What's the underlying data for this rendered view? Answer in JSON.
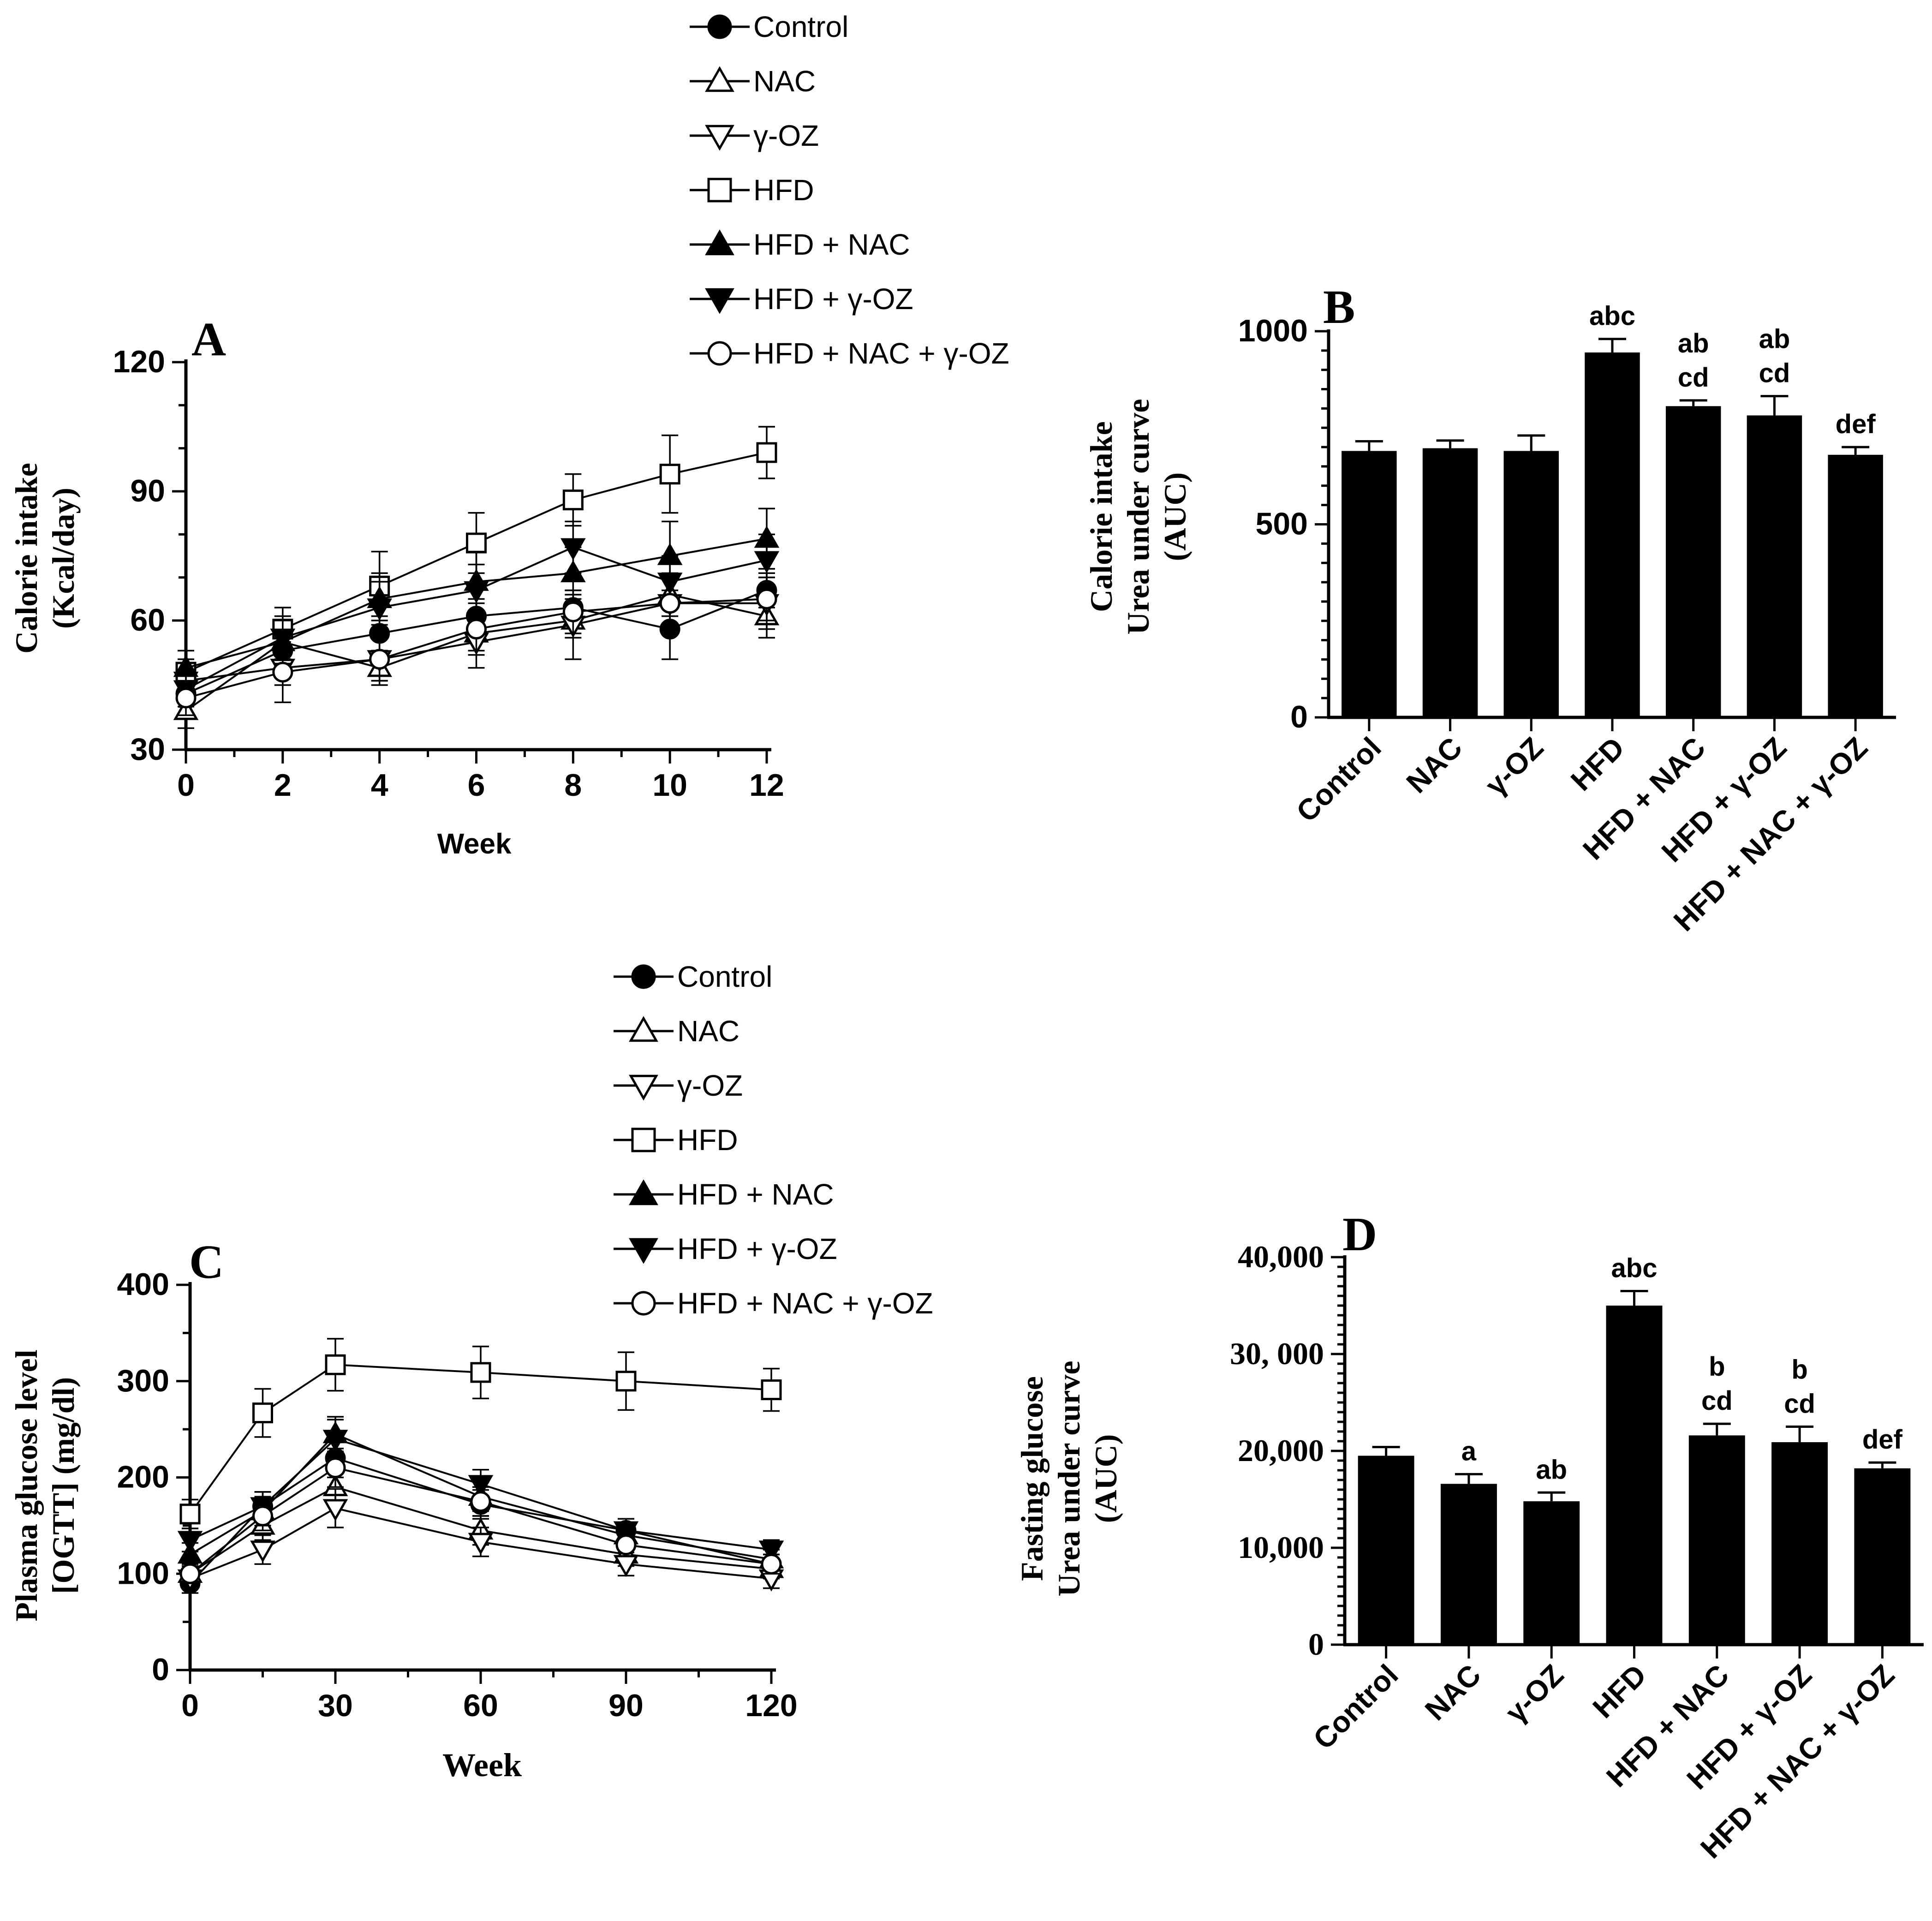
{
  "figure": {
    "background": "#ffffff",
    "ink": "#000000"
  },
  "legend": {
    "items": [
      {
        "label": "Control",
        "marker": "filled-circle-icon"
      },
      {
        "label": "NAC",
        "marker": "open-triangle-up-icon"
      },
      {
        "label": "γ-OZ",
        "marker": "open-triangle-down-icon"
      },
      {
        "label": "HFD",
        "marker": "open-square-icon"
      },
      {
        "label": "HFD + NAC",
        "marker": "filled-triangle-up-icon"
      },
      {
        "label": "HFD + γ-OZ",
        "marker": "filled-triangle-down-icon"
      },
      {
        "label": "HFD + NAC + γ-OZ",
        "marker": "open-circle-icon"
      }
    ]
  },
  "chart_data": [
    {
      "panel": "A",
      "type": "line",
      "xlabel": "Week",
      "ylabel_lines": [
        "Calorie intake",
        "(Kcal/day)"
      ],
      "xlim": [
        0,
        12
      ],
      "ylim": [
        30,
        120
      ],
      "xticks": [
        0,
        2,
        4,
        6,
        8,
        10,
        12
      ],
      "yticks": [
        30,
        60,
        90,
        120
      ],
      "x": [
        0,
        2,
        4,
        6,
        8,
        10,
        12
      ],
      "series": [
        {
          "name": "Control",
          "values": [
            43,
            53,
            57,
            61,
            63,
            58,
            67
          ],
          "err": [
            3,
            3,
            4,
            4,
            3,
            7,
            4
          ]
        },
        {
          "name": "NAC",
          "values": [
            39,
            55,
            49,
            57,
            60,
            66,
            61
          ],
          "err": [
            4,
            4,
            4,
            4,
            4,
            5,
            5
          ]
        },
        {
          "name": "γ-OZ",
          "values": [
            46,
            49,
            51,
            55,
            59,
            64,
            64
          ],
          "err": [
            4,
            4,
            5,
            6,
            8,
            6,
            6
          ]
        },
        {
          "name": "HFD",
          "values": [
            48,
            58,
            68,
            78,
            88,
            94,
            99
          ],
          "err": [
            3,
            5,
            8,
            7,
            6,
            9,
            6
          ]
        },
        {
          "name": "HFD + NAC",
          "values": [
            49,
            55,
            65,
            69,
            71,
            75,
            79
          ],
          "err": [
            4,
            5,
            6,
            7,
            6,
            8,
            7
          ]
        },
        {
          "name": "HFD + γ-OZ",
          "values": [
            44,
            56,
            63,
            67,
            77,
            69,
            74
          ],
          "err": [
            4,
            5,
            6,
            6,
            6,
            6,
            6
          ]
        },
        {
          "name": "HFD + NAC + γ-OZ",
          "values": [
            42,
            48,
            51,
            58,
            62,
            64,
            65
          ],
          "err": [
            4,
            7,
            5,
            6,
            5,
            6,
            5
          ]
        }
      ]
    },
    {
      "panel": "B",
      "type": "bar",
      "ylabel_lines": [
        "Calorie intake",
        "Urea under curve",
        "(AUC)"
      ],
      "ylim": [
        0,
        1000
      ],
      "yticks": [
        0,
        500,
        1000
      ],
      "ytick_labels": [
        "0",
        "500",
        "1000"
      ],
      "categories": [
        "Control",
        "NAC",
        "γ-OZ",
        "HFD",
        "HFD + NAC",
        "HFD + γ-OZ",
        "HFD + NAC + γ-OZ"
      ],
      "values": [
        690,
        697,
        690,
        945,
        806,
        782,
        680
      ],
      "err": [
        25,
        20,
        40,
        35,
        15,
        50,
        20
      ],
      "sig_labels": [
        [],
        [],
        [],
        [
          "abc"
        ],
        [
          "ab",
          "cd"
        ],
        [
          "ab",
          "cd"
        ],
        [
          "def"
        ]
      ]
    },
    {
      "panel": "C",
      "type": "line",
      "xlabel": "Week",
      "ylabel_lines": [
        "Plasma glucose level",
        "[OGTT] (mg/dl)"
      ],
      "xlim": [
        0,
        120
      ],
      "ylim": [
        0,
        400
      ],
      "xticks": [
        0,
        30,
        60,
        90,
        120
      ],
      "yticks": [
        0,
        100,
        200,
        300,
        400
      ],
      "x": [
        0,
        15,
        30,
        60,
        90,
        120
      ],
      "series": [
        {
          "name": "Control",
          "values": [
            90,
            170,
            220,
            172,
            145,
            110
          ],
          "err": [
            10,
            15,
            20,
            15,
            12,
            10
          ]
        },
        {
          "name": "NAC",
          "values": [
            100,
            150,
            190,
            145,
            120,
            105
          ],
          "err": [
            10,
            15,
            20,
            15,
            12,
            10
          ]
        },
        {
          "name": "γ-OZ",
          "values": [
            95,
            125,
            168,
            133,
            110,
            95
          ],
          "err": [
            10,
            15,
            20,
            15,
            12,
            10
          ]
        },
        {
          "name": "HFD",
          "values": [
            162,
            267,
            317,
            309,
            300,
            291
          ],
          "err": [
            15,
            25,
            27,
            27,
            30,
            22
          ]
        },
        {
          "name": "HFD + NAC",
          "values": [
            120,
            165,
            245,
            180,
            140,
            115
          ],
          "err": [
            12,
            15,
            18,
            15,
            12,
            10
          ]
        },
        {
          "name": "HFD + γ-OZ",
          "values": [
            135,
            170,
            240,
            193,
            145,
            125
          ],
          "err": [
            12,
            15,
            20,
            15,
            12,
            10
          ]
        },
        {
          "name": "HFD + NAC + γ-OZ",
          "values": [
            100,
            160,
            210,
            175,
            130,
            110
          ],
          "err": [
            10,
            15,
            20,
            15,
            12,
            10
          ]
        }
      ]
    },
    {
      "panel": "D",
      "type": "bar",
      "ylabel_lines": [
        "Fasting glucose",
        "Urea under curve",
        "(AUC)"
      ],
      "ylim": [
        0,
        40000
      ],
      "yticks": [
        0,
        10000,
        20000,
        30000,
        40000
      ],
      "ytick_labels": [
        "0",
        "10,000",
        "20,000",
        "30, 000",
        "40,000"
      ],
      "categories": [
        "Control",
        "NAC",
        "γ-OZ",
        "HFD",
        "HFD + NAC",
        "HFD + γ-OZ",
        "HFD + NAC + γ-OZ"
      ],
      "values": [
        19500,
        16600,
        14800,
        35000,
        21600,
        20900,
        18200
      ],
      "err": [
        900,
        1000,
        900,
        1500,
        1200,
        1600,
        600
      ],
      "sig_labels": [
        [],
        [
          "a"
        ],
        [
          "ab"
        ],
        [
          "abc"
        ],
        [
          "b",
          "cd"
        ],
        [
          "b",
          "cd"
        ],
        [
          "def"
        ]
      ]
    }
  ]
}
